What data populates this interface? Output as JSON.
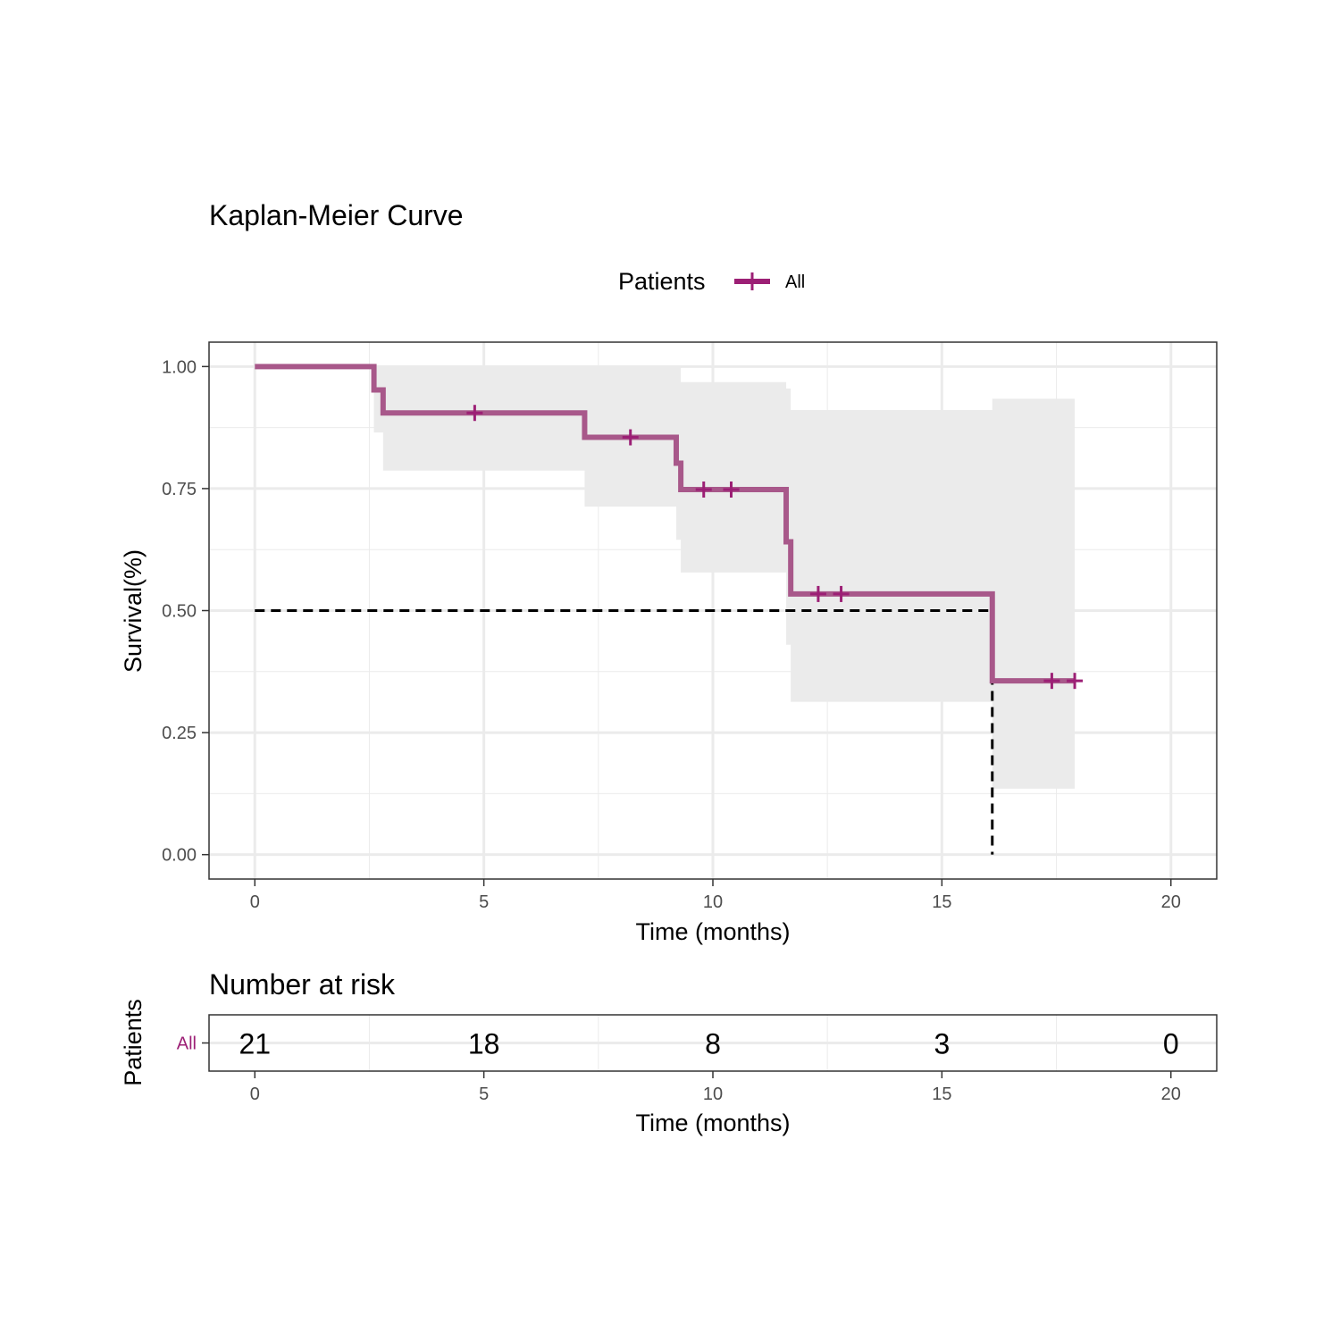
{
  "chart_data": {
    "type": "line",
    "subtype": "kaplan-meier",
    "title": "Kaplan-Meier Curve",
    "xlabel": "Time (months)",
    "ylabel": "Survival(%)",
    "xlim": [
      -1,
      21
    ],
    "ylim": [
      -0.05,
      1.05
    ],
    "x_ticks": [
      0,
      5,
      10,
      15,
      20
    ],
    "x_tick_labels": [
      "0",
      "5",
      "10",
      "15",
      "20"
    ],
    "y_ticks": [
      0,
      0.25,
      0.5,
      0.75,
      1.0
    ],
    "y_tick_labels": [
      "0.00",
      "0.25",
      "0.50",
      "0.75",
      "1.00"
    ],
    "grid": true,
    "legend": {
      "position": "top",
      "title": "Patients",
      "entries": [
        "All"
      ]
    },
    "series": [
      {
        "name": "All",
        "color": "#a8588a",
        "marker_color": "#9c1f75",
        "steps": [
          {
            "x": 0,
            "y": 1.0
          },
          {
            "x": 2.6,
            "y": 0.952
          },
          {
            "x": 2.8,
            "y": 0.905
          },
          {
            "x": 7.2,
            "y": 0.855
          },
          {
            "x": 9.2,
            "y": 0.802
          },
          {
            "x": 9.3,
            "y": 0.748
          },
          {
            "x": 11.6,
            "y": 0.641
          },
          {
            "x": 11.7,
            "y": 0.534
          },
          {
            "x": 16.1,
            "y": 0.356
          }
        ],
        "end_x": 17.9,
        "censor_marks": [
          {
            "x": 4.8,
            "y": 0.905
          },
          {
            "x": 8.2,
            "y": 0.855
          },
          {
            "x": 9.8,
            "y": 0.748
          },
          {
            "x": 10.4,
            "y": 0.748
          },
          {
            "x": 12.3,
            "y": 0.534
          },
          {
            "x": 12.8,
            "y": 0.534
          },
          {
            "x": 17.4,
            "y": 0.356
          },
          {
            "x": 17.9,
            "y": 0.356
          }
        ],
        "confidence_band": {
          "color": "#ebebeb",
          "steps": [
            {
              "x": 0,
              "lower": 1.0,
              "upper": 1.0
            },
            {
              "x": 2.6,
              "lower": 0.865,
              "upper": 1.0
            },
            {
              "x": 2.8,
              "lower": 0.787,
              "upper": 1.0
            },
            {
              "x": 7.2,
              "lower": 0.713,
              "upper": 1.0
            },
            {
              "x": 9.2,
              "lower": 0.645,
              "upper": 1.0
            },
            {
              "x": 9.3,
              "lower": 0.578,
              "upper": 0.968
            },
            {
              "x": 11.6,
              "lower": 0.43,
              "upper": 0.955
            },
            {
              "x": 11.7,
              "lower": 0.313,
              "upper": 0.911
            },
            {
              "x": 16.1,
              "lower": 0.135,
              "upper": 0.934
            }
          ],
          "end_x": 17.9
        }
      }
    ],
    "median": {
      "x": 16.1,
      "y": 0.5
    }
  },
  "risk_table": {
    "title": "Number at risk",
    "ylabel": "Patients",
    "xlabel": "Time (months)",
    "group": "All",
    "group_color": "#9c1f75",
    "times": [
      0,
      5,
      10,
      15,
      20
    ],
    "time_labels": [
      "0",
      "5",
      "10",
      "15",
      "20"
    ],
    "counts": [
      "21",
      "18",
      "8",
      "3",
      "0"
    ]
  }
}
